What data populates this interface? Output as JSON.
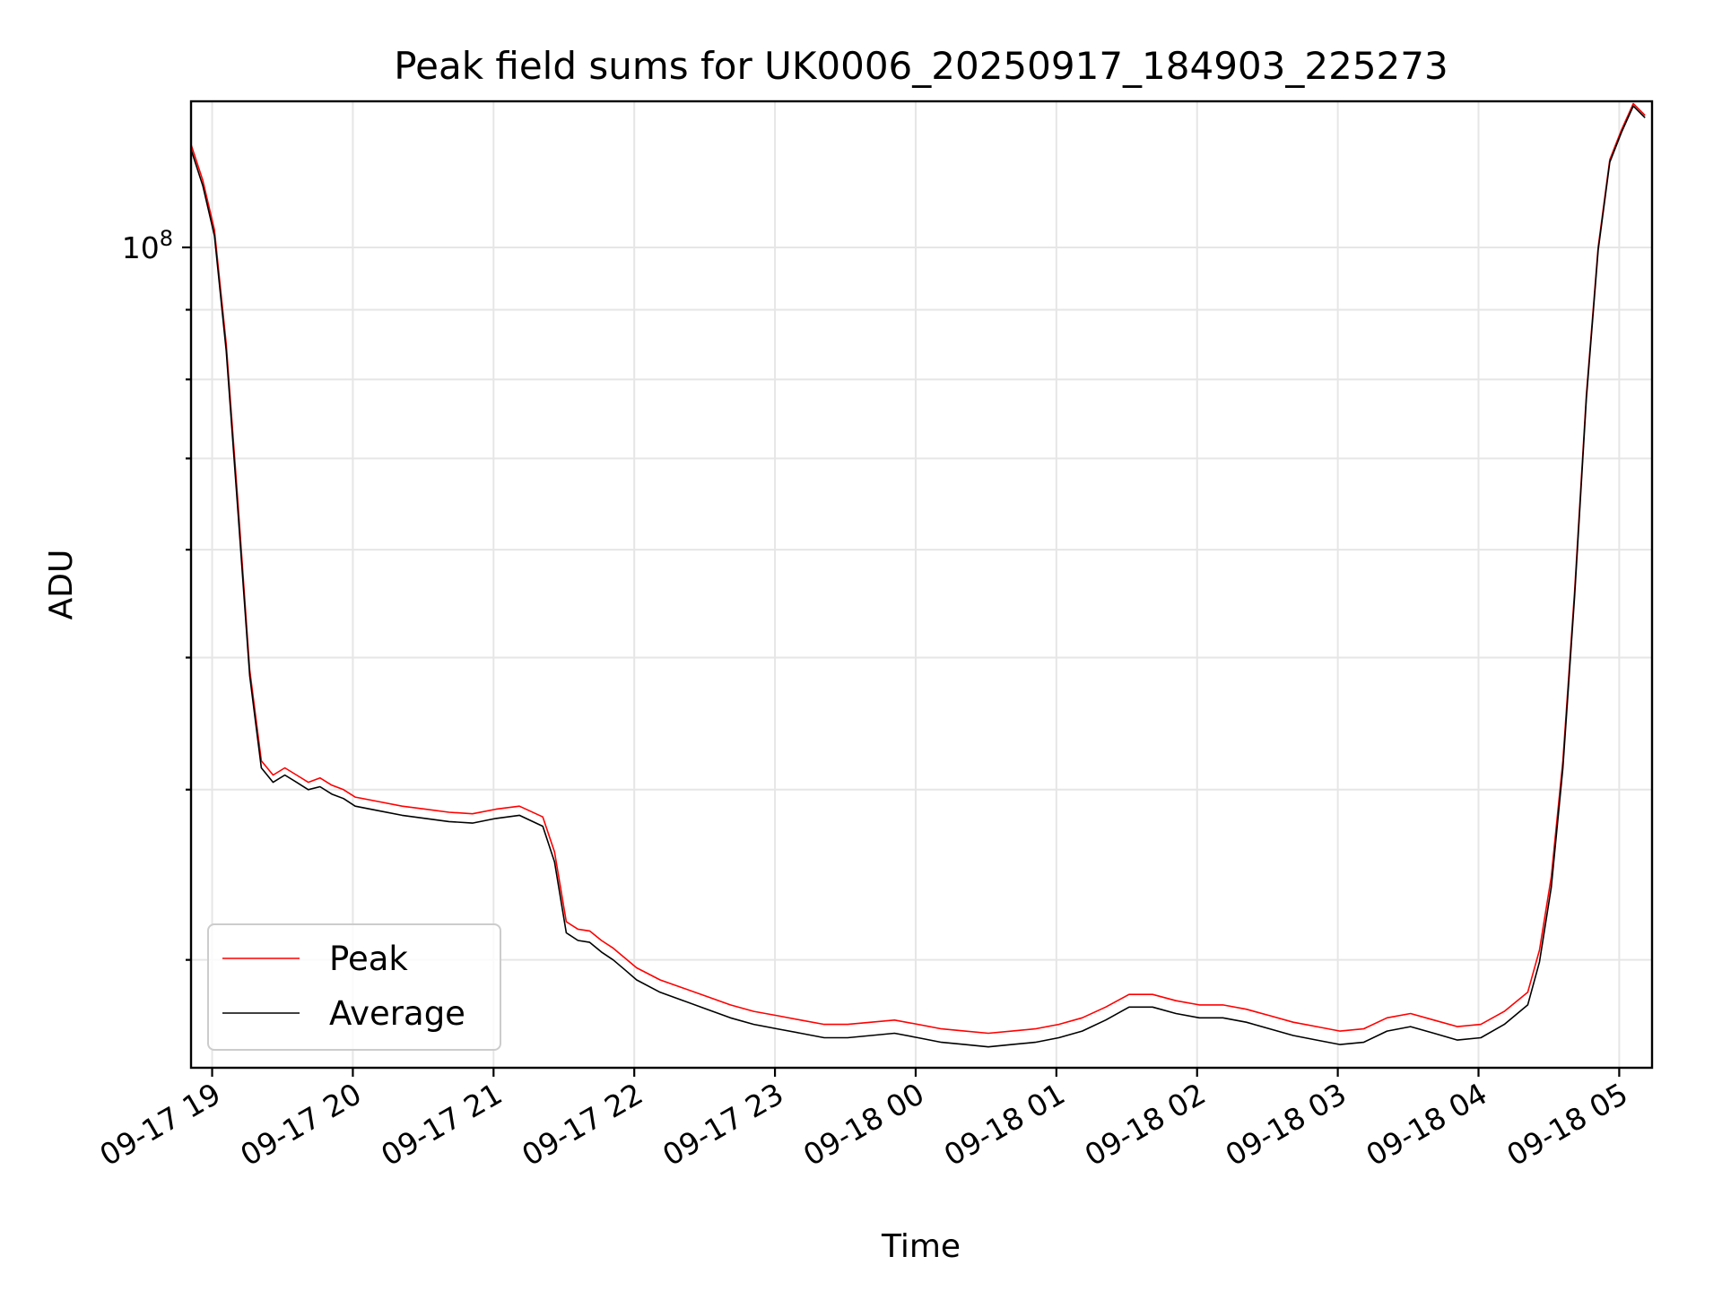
{
  "chart_data": {
    "type": "line",
    "title": "Peak field sums for UK0006_20250917_184903_225273",
    "xlabel": "Time",
    "ylabel": "ADU",
    "yscale": "log",
    "grid": true,
    "legend_position": "lower-left",
    "xlim": [
      "2025-09-17T18:51",
      "2025-09-18T05:14"
    ],
    "ylim": [
      25000000,
      128000000
    ],
    "x_ticks": [
      "09-17 19",
      "09-17 20",
      "09-17 21",
      "09-17 22",
      "09-17 23",
      "09-18 00",
      "09-18 01",
      "09-18 02",
      "09-18 03",
      "09-18 04",
      "09-18 05"
    ],
    "y_tick_labels": [
      {
        "value": 100000000,
        "base": "10",
        "exp": "8"
      }
    ],
    "series": [
      {
        "name": "Peak",
        "color": "#ff0000",
        "x": [
          "2025-09-17T18:51",
          "2025-09-17T18:56",
          "2025-09-17T19:01",
          "2025-09-17T19:06",
          "2025-09-17T19:11",
          "2025-09-17T19:16",
          "2025-09-17T19:21",
          "2025-09-17T19:26",
          "2025-09-17T19:31",
          "2025-09-17T19:36",
          "2025-09-17T19:41",
          "2025-09-17T19:46",
          "2025-09-17T19:51",
          "2025-09-17T19:56",
          "2025-09-17T20:01",
          "2025-09-17T20:11",
          "2025-09-17T20:21",
          "2025-09-17T20:31",
          "2025-09-17T20:41",
          "2025-09-17T20:51",
          "2025-09-17T21:01",
          "2025-09-17T21:11",
          "2025-09-17T21:21",
          "2025-09-17T21:26",
          "2025-09-17T21:31",
          "2025-09-17T21:36",
          "2025-09-17T21:41",
          "2025-09-17T21:46",
          "2025-09-17T21:51",
          "2025-09-17T21:56",
          "2025-09-17T22:01",
          "2025-09-17T22:11",
          "2025-09-17T22:21",
          "2025-09-17T22:31",
          "2025-09-17T22:41",
          "2025-09-17T22:51",
          "2025-09-17T23:01",
          "2025-09-17T23:11",
          "2025-09-17T23:21",
          "2025-09-17T23:31",
          "2025-09-17T23:41",
          "2025-09-17T23:51",
          "2025-09-18T00:01",
          "2025-09-18T00:11",
          "2025-09-18T00:21",
          "2025-09-18T00:31",
          "2025-09-18T00:41",
          "2025-09-18T00:51",
          "2025-09-18T01:01",
          "2025-09-18T01:11",
          "2025-09-18T01:21",
          "2025-09-18T01:31",
          "2025-09-18T01:41",
          "2025-09-18T01:51",
          "2025-09-18T02:01",
          "2025-09-18T02:11",
          "2025-09-18T02:21",
          "2025-09-18T02:31",
          "2025-09-18T02:41",
          "2025-09-18T02:51",
          "2025-09-18T03:01",
          "2025-09-18T03:11",
          "2025-09-18T03:21",
          "2025-09-18T03:31",
          "2025-09-18T03:41",
          "2025-09-18T03:51",
          "2025-09-18T04:01",
          "2025-09-18T04:11",
          "2025-09-18T04:21",
          "2025-09-18T04:26",
          "2025-09-18T04:31",
          "2025-09-18T04:36",
          "2025-09-18T04:41",
          "2025-09-18T04:46",
          "2025-09-18T04:51",
          "2025-09-18T04:56",
          "2025-09-18T05:01",
          "2025-09-18T05:06",
          "2025-09-18T05:11"
        ],
        "values": [
          119000000,
          112000000,
          103000000,
          85000000,
          65000000,
          49000000,
          42000000,
          41000000,
          41500000,
          41000000,
          40500000,
          40800000,
          40300000,
          40000000,
          39500000,
          39200000,
          38900000,
          38700000,
          38500000,
          38400000,
          38700000,
          38900000,
          38200000,
          36000000,
          32000000,
          31600000,
          31500000,
          31000000,
          30600000,
          30100000,
          29600000,
          29000000,
          28600000,
          28200000,
          27800000,
          27500000,
          27300000,
          27100000,
          26900000,
          26900000,
          27000000,
          27100000,
          26900000,
          26700000,
          26600000,
          26500000,
          26600000,
          26700000,
          26900000,
          27200000,
          27700000,
          28300000,
          28300000,
          28000000,
          27800000,
          27800000,
          27600000,
          27300000,
          27000000,
          26800000,
          26600000,
          26700000,
          27200000,
          27400000,
          27100000,
          26800000,
          26900000,
          27500000,
          28400000,
          30500000,
          34500000,
          42000000,
          56000000,
          78000000,
          100000000,
          116000000,
          122000000,
          127500000,
          125000000
        ]
      },
      {
        "name": "Average",
        "color": "#000000",
        "x": [
          "2025-09-17T18:51",
          "2025-09-17T18:56",
          "2025-09-17T19:01",
          "2025-09-17T19:06",
          "2025-09-17T19:11",
          "2025-09-17T19:16",
          "2025-09-17T19:21",
          "2025-09-17T19:26",
          "2025-09-17T19:31",
          "2025-09-17T19:36",
          "2025-09-17T19:41",
          "2025-09-17T19:46",
          "2025-09-17T19:51",
          "2025-09-17T19:56",
          "2025-09-17T20:01",
          "2025-09-17T20:11",
          "2025-09-17T20:21",
          "2025-09-17T20:31",
          "2025-09-17T20:41",
          "2025-09-17T20:51",
          "2025-09-17T21:01",
          "2025-09-17T21:11",
          "2025-09-17T21:21",
          "2025-09-17T21:26",
          "2025-09-17T21:31",
          "2025-09-17T21:36",
          "2025-09-17T21:41",
          "2025-09-17T21:46",
          "2025-09-17T21:51",
          "2025-09-17T21:56",
          "2025-09-17T22:01",
          "2025-09-17T22:11",
          "2025-09-17T22:21",
          "2025-09-17T22:31",
          "2025-09-17T22:41",
          "2025-09-17T22:51",
          "2025-09-17T23:01",
          "2025-09-17T23:11",
          "2025-09-17T23:21",
          "2025-09-17T23:31",
          "2025-09-17T23:41",
          "2025-09-17T23:51",
          "2025-09-18T00:01",
          "2025-09-18T00:11",
          "2025-09-18T00:21",
          "2025-09-18T00:31",
          "2025-09-18T00:41",
          "2025-09-18T00:51",
          "2025-09-18T01:01",
          "2025-09-18T01:11",
          "2025-09-18T01:21",
          "2025-09-18T01:31",
          "2025-09-18T01:41",
          "2025-09-18T01:51",
          "2025-09-18T02:01",
          "2025-09-18T02:11",
          "2025-09-18T02:21",
          "2025-09-18T02:31",
          "2025-09-18T02:41",
          "2025-09-18T02:51",
          "2025-09-18T03:01",
          "2025-09-18T03:11",
          "2025-09-18T03:21",
          "2025-09-18T03:31",
          "2025-09-18T03:41",
          "2025-09-18T03:51",
          "2025-09-18T04:01",
          "2025-09-18T04:11",
          "2025-09-18T04:21",
          "2025-09-18T04:26",
          "2025-09-18T04:31",
          "2025-09-18T04:36",
          "2025-09-18T04:41",
          "2025-09-18T04:46",
          "2025-09-18T04:51",
          "2025-09-18T04:56",
          "2025-09-18T05:01",
          "2025-09-18T05:06",
          "2025-09-18T05:11"
        ],
        "values": [
          118000000,
          111000000,
          102000000,
          84000000,
          64000000,
          48500000,
          41500000,
          40500000,
          41000000,
          40500000,
          40000000,
          40200000,
          39700000,
          39400000,
          38900000,
          38600000,
          38300000,
          38100000,
          37900000,
          37800000,
          38100000,
          38300000,
          37600000,
          35400000,
          31400000,
          31000000,
          30900000,
          30400000,
          30000000,
          29500000,
          29000000,
          28400000,
          28000000,
          27600000,
          27200000,
          26900000,
          26700000,
          26500000,
          26300000,
          26300000,
          26400000,
          26500000,
          26300000,
          26100000,
          26000000,
          25900000,
          26000000,
          26100000,
          26300000,
          26600000,
          27100000,
          27700000,
          27700000,
          27400000,
          27200000,
          27200000,
          27000000,
          26700000,
          26400000,
          26200000,
          26000000,
          26100000,
          26600000,
          26800000,
          26500000,
          26200000,
          26300000,
          26900000,
          27800000,
          29900000,
          33900000,
          41500000,
          55500000,
          77500000,
          99500000,
          115500000,
          121500000,
          127000000,
          124500000
        ]
      }
    ]
  }
}
